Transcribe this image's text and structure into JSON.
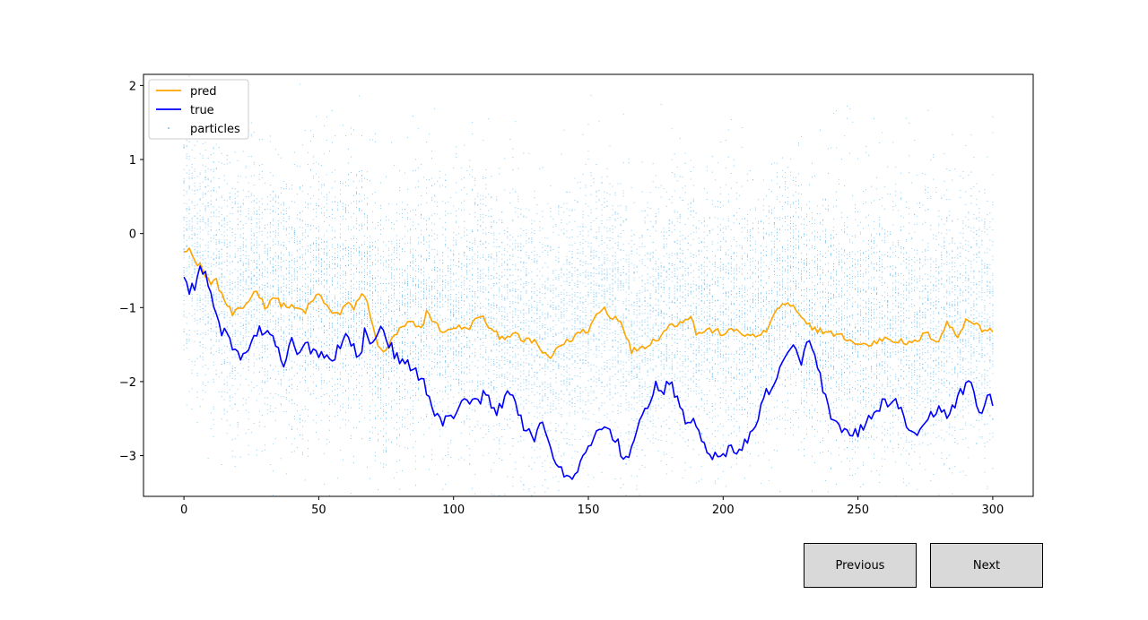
{
  "window": {
    "buttons": {
      "previous_label": "Previous",
      "next_label": "Next"
    }
  },
  "chart_data": {
    "type": "line",
    "title": "",
    "xlabel": "",
    "ylabel": "",
    "xlim": [
      -15,
      315
    ],
    "ylim": [
      -3.55,
      2.15
    ],
    "xticks": [
      0,
      50,
      100,
      150,
      200,
      250,
      300
    ],
    "xtick_labels": [
      "0",
      "50",
      "100",
      "150",
      "200",
      "250",
      "300"
    ],
    "yticks": [
      2,
      1,
      0,
      -1,
      -2,
      -3
    ],
    "ytick_labels": [
      "2",
      "1",
      "0",
      "−1",
      "−2",
      "−3"
    ],
    "grid": false,
    "legend": {
      "placement": "top-left",
      "entries": [
        "pred",
        "true",
        "particles"
      ]
    },
    "colors": {
      "pred": "#ffa500",
      "true": "#0000ff",
      "particles": "#56b4e9"
    },
    "series": [
      {
        "name": "pred",
        "keypoints_x": [
          0,
          2,
          4,
          6,
          8,
          10,
          12,
          15,
          18,
          20,
          22,
          25,
          27,
          30,
          33,
          36,
          40,
          45,
          50,
          52,
          55,
          58,
          60,
          63,
          66,
          68,
          70,
          72,
          74,
          76,
          80,
          84,
          88,
          90,
          94,
          97,
          100,
          105,
          110,
          115,
          118,
          122,
          126,
          130,
          134,
          136,
          138,
          140,
          143,
          146,
          150,
          153,
          156,
          158,
          160,
          163,
          166,
          168,
          172,
          176,
          180,
          184,
          188,
          190,
          195,
          200,
          205,
          210,
          215,
          218,
          220,
          223,
          226,
          230,
          235,
          240,
          245,
          250,
          255,
          260,
          265,
          270,
          275,
          280,
          283,
          287,
          290,
          293,
          296,
          300
        ],
        "keypoints_y": [
          -0.2,
          -0.2,
          -0.4,
          -0.4,
          -0.6,
          -0.65,
          -0.65,
          -0.9,
          -1.1,
          -1.05,
          -1.0,
          -0.85,
          -0.75,
          -1.0,
          -0.85,
          -0.95,
          -1.0,
          -1.05,
          -0.8,
          -0.95,
          -1.05,
          -1.1,
          -0.95,
          -1.0,
          -0.8,
          -0.95,
          -1.2,
          -1.55,
          -1.6,
          -1.5,
          -1.3,
          -1.2,
          -1.3,
          -1.05,
          -1.25,
          -1.35,
          -1.25,
          -1.3,
          -1.1,
          -1.35,
          -1.4,
          -1.35,
          -1.45,
          -1.45,
          -1.65,
          -1.7,
          -1.55,
          -1.5,
          -1.45,
          -1.35,
          -1.3,
          -1.1,
          -1.0,
          -1.15,
          -1.1,
          -1.25,
          -1.6,
          -1.55,
          -1.5,
          -1.4,
          -1.25,
          -1.2,
          -1.1,
          -1.35,
          -1.3,
          -1.35,
          -1.3,
          -1.4,
          -1.35,
          -1.2,
          -1.0,
          -0.95,
          -1.0,
          -1.2,
          -1.3,
          -1.35,
          -1.4,
          -1.5,
          -1.5,
          -1.4,
          -1.45,
          -1.5,
          -1.35,
          -1.45,
          -1.2,
          -1.4,
          -1.15,
          -1.2,
          -1.3,
          -1.3
        ]
      },
      {
        "name": "true",
        "keypoints_x": [
          0,
          2,
          4,
          6,
          8,
          10,
          12,
          14,
          16,
          18,
          20,
          22,
          24,
          26,
          28,
          30,
          33,
          35,
          37,
          40,
          42,
          45,
          47,
          50,
          52,
          55,
          57,
          60,
          62,
          65,
          67,
          70,
          72,
          74,
          77,
          80,
          85,
          88,
          90,
          93,
          96,
          100,
          104,
          108,
          112,
          115,
          118,
          120,
          123,
          126,
          130,
          133,
          136,
          139,
          141,
          143,
          146,
          150,
          153,
          156,
          160,
          163,
          166,
          169,
          172,
          175,
          178,
          180,
          183,
          186,
          190,
          193,
          196,
          200,
          203,
          206,
          210,
          213,
          216,
          220,
          223,
          226,
          229,
          232,
          235,
          238,
          240,
          244,
          248,
          252,
          256,
          260,
          264,
          268,
          272,
          276,
          280,
          284,
          288,
          292,
          295,
          298,
          300
        ],
        "keypoints_y": [
          -0.65,
          -0.75,
          -0.7,
          -0.45,
          -0.55,
          -0.85,
          -1.1,
          -1.4,
          -1.3,
          -1.5,
          -1.65,
          -1.7,
          -1.5,
          -1.4,
          -1.3,
          -1.35,
          -1.45,
          -1.6,
          -1.8,
          -1.45,
          -1.65,
          -1.5,
          -1.55,
          -1.6,
          -1.65,
          -1.7,
          -1.55,
          -1.4,
          -1.45,
          -1.7,
          -1.35,
          -1.5,
          -1.3,
          -1.3,
          -1.55,
          -1.75,
          -1.8,
          -1.95,
          -2.1,
          -2.45,
          -2.55,
          -2.45,
          -2.2,
          -2.3,
          -2.15,
          -2.4,
          -2.35,
          -2.05,
          -2.3,
          -2.65,
          -2.75,
          -2.5,
          -2.9,
          -3.2,
          -3.25,
          -3.35,
          -3.15,
          -2.95,
          -2.7,
          -2.6,
          -2.75,
          -3.05,
          -2.9,
          -2.6,
          -2.3,
          -2.05,
          -2.15,
          -2.0,
          -2.25,
          -2.5,
          -2.6,
          -2.85,
          -3.0,
          -3.05,
          -2.85,
          -2.95,
          -2.75,
          -2.45,
          -2.15,
          -1.95,
          -1.7,
          -1.55,
          -1.7,
          -1.45,
          -1.8,
          -2.2,
          -2.55,
          -2.65,
          -2.75,
          -2.6,
          -2.45,
          -2.25,
          -2.3,
          -2.55,
          -2.8,
          -2.5,
          -2.35,
          -2.45,
          -2.15,
          -2.0,
          -2.45,
          -2.2,
          -2.25
        ]
      },
      {
        "name": "particles",
        "type": "scatter",
        "center_offset_from_pred": 0.15,
        "spread_y": 0.9,
        "points_per_step": 50
      }
    ]
  }
}
